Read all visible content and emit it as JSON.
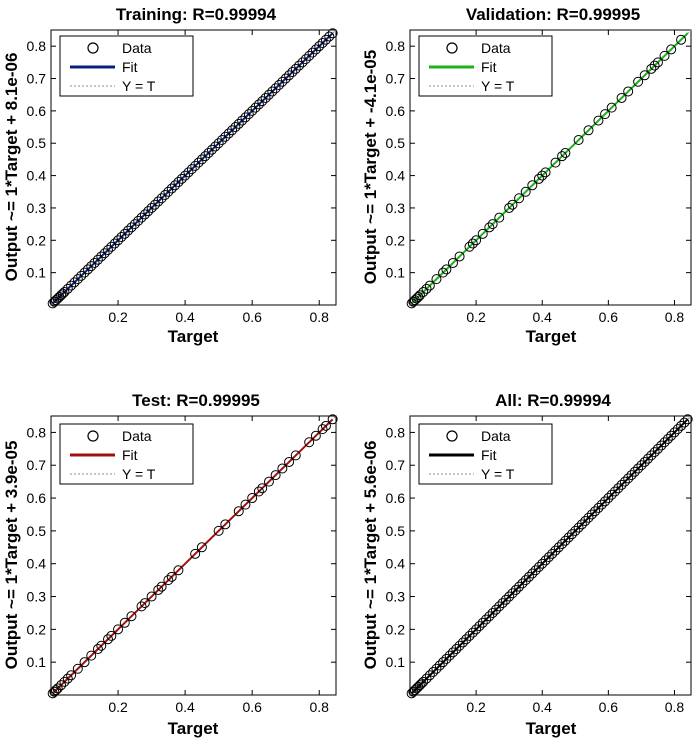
{
  "chart_data": [
    {
      "type": "scatter",
      "title": "Training: R=0.99994",
      "xlabel": "Target",
      "ylabel": "Output ~= 1*Target + 8.1e-06",
      "fit_color": "#0a1f7a",
      "xlim": [
        0,
        0.85
      ],
      "ylim": [
        0,
        0.85
      ],
      "xticks": [
        "0.2",
        "0.4",
        "0.6",
        "0.8"
      ],
      "yticks": [
        "0.1",
        "0.2",
        "0.3",
        "0.4",
        "0.5",
        "0.6",
        "0.7",
        "0.8"
      ],
      "legend": {
        "position": "top-left",
        "entries": [
          "Data",
          "Fit",
          "Y = T"
        ]
      },
      "fit_line": [
        [
          0.005,
          0.005
        ],
        [
          0.84,
          0.84
        ]
      ],
      "points": [
        [
          0.005,
          0.005
        ],
        [
          0.01,
          0.01
        ],
        [
          0.015,
          0.015
        ],
        [
          0.02,
          0.02
        ],
        [
          0.025,
          0.025
        ],
        [
          0.03,
          0.03
        ],
        [
          0.035,
          0.035
        ],
        [
          0.04,
          0.04
        ],
        [
          0.05,
          0.05
        ],
        [
          0.06,
          0.06
        ],
        [
          0.07,
          0.07
        ],
        [
          0.08,
          0.08
        ],
        [
          0.09,
          0.09
        ],
        [
          0.1,
          0.1
        ],
        [
          0.11,
          0.11
        ],
        [
          0.12,
          0.12
        ],
        [
          0.13,
          0.13
        ],
        [
          0.14,
          0.14
        ],
        [
          0.15,
          0.15
        ],
        [
          0.16,
          0.16
        ],
        [
          0.17,
          0.17
        ],
        [
          0.18,
          0.18
        ],
        [
          0.19,
          0.19
        ],
        [
          0.2,
          0.2
        ],
        [
          0.21,
          0.21
        ],
        [
          0.22,
          0.22
        ],
        [
          0.23,
          0.23
        ],
        [
          0.24,
          0.24
        ],
        [
          0.25,
          0.25
        ],
        [
          0.26,
          0.26
        ],
        [
          0.27,
          0.27
        ],
        [
          0.28,
          0.28
        ],
        [
          0.29,
          0.29
        ],
        [
          0.3,
          0.3
        ],
        [
          0.31,
          0.31
        ],
        [
          0.32,
          0.32
        ],
        [
          0.33,
          0.33
        ],
        [
          0.34,
          0.34
        ],
        [
          0.35,
          0.35
        ],
        [
          0.36,
          0.36
        ],
        [
          0.37,
          0.37
        ],
        [
          0.38,
          0.38
        ],
        [
          0.39,
          0.39
        ],
        [
          0.4,
          0.4
        ],
        [
          0.41,
          0.41
        ],
        [
          0.42,
          0.42
        ],
        [
          0.43,
          0.43
        ],
        [
          0.44,
          0.44
        ],
        [
          0.45,
          0.45
        ],
        [
          0.46,
          0.46
        ],
        [
          0.47,
          0.47
        ],
        [
          0.48,
          0.48
        ],
        [
          0.49,
          0.49
        ],
        [
          0.5,
          0.5
        ],
        [
          0.51,
          0.51
        ],
        [
          0.52,
          0.52
        ],
        [
          0.53,
          0.53
        ],
        [
          0.54,
          0.54
        ],
        [
          0.55,
          0.55
        ],
        [
          0.56,
          0.56
        ],
        [
          0.57,
          0.57
        ],
        [
          0.58,
          0.58
        ],
        [
          0.59,
          0.59
        ],
        [
          0.6,
          0.6
        ],
        [
          0.61,
          0.61
        ],
        [
          0.62,
          0.62
        ],
        [
          0.63,
          0.63
        ],
        [
          0.64,
          0.64
        ],
        [
          0.65,
          0.65
        ],
        [
          0.66,
          0.66
        ],
        [
          0.67,
          0.67
        ],
        [
          0.68,
          0.68
        ],
        [
          0.69,
          0.69
        ],
        [
          0.7,
          0.7
        ],
        [
          0.71,
          0.71
        ],
        [
          0.72,
          0.72
        ],
        [
          0.73,
          0.73
        ],
        [
          0.74,
          0.74
        ],
        [
          0.75,
          0.75
        ],
        [
          0.76,
          0.76
        ],
        [
          0.77,
          0.77
        ],
        [
          0.78,
          0.78
        ],
        [
          0.79,
          0.79
        ],
        [
          0.8,
          0.8
        ],
        [
          0.81,
          0.81
        ],
        [
          0.82,
          0.82
        ],
        [
          0.83,
          0.83
        ],
        [
          0.84,
          0.84
        ]
      ]
    },
    {
      "type": "scatter",
      "title": "Validation: R=0.99995",
      "xlabel": "Target",
      "ylabel": "Output ~= 1*Target + -4.1e-05",
      "fit_color": "#1db11d",
      "xlim": [
        0,
        0.85
      ],
      "ylim": [
        0,
        0.85
      ],
      "xticks": [
        "0.2",
        "0.4",
        "0.6",
        "0.8"
      ],
      "yticks": [
        "0.1",
        "0.2",
        "0.3",
        "0.4",
        "0.5",
        "0.6",
        "0.7",
        "0.8"
      ],
      "legend": {
        "position": "top-left",
        "entries": [
          "Data",
          "Fit",
          "Y = T"
        ]
      },
      "fit_line": [
        [
          0.005,
          0.005
        ],
        [
          0.84,
          0.84
        ]
      ],
      "points": [
        [
          0.005,
          0.005
        ],
        [
          0.01,
          0.01
        ],
        [
          0.015,
          0.015
        ],
        [
          0.02,
          0.02
        ],
        [
          0.025,
          0.025
        ],
        [
          0.03,
          0.03
        ],
        [
          0.04,
          0.04
        ],
        [
          0.05,
          0.05
        ],
        [
          0.06,
          0.06
        ],
        [
          0.08,
          0.08
        ],
        [
          0.1,
          0.1
        ],
        [
          0.11,
          0.11
        ],
        [
          0.13,
          0.13
        ],
        [
          0.15,
          0.15
        ],
        [
          0.18,
          0.18
        ],
        [
          0.19,
          0.19
        ],
        [
          0.2,
          0.2
        ],
        [
          0.22,
          0.22
        ],
        [
          0.24,
          0.24
        ],
        [
          0.25,
          0.25
        ],
        [
          0.27,
          0.27
        ],
        [
          0.3,
          0.3
        ],
        [
          0.31,
          0.31
        ],
        [
          0.33,
          0.33
        ],
        [
          0.35,
          0.35
        ],
        [
          0.37,
          0.37
        ],
        [
          0.39,
          0.39
        ],
        [
          0.4,
          0.4
        ],
        [
          0.41,
          0.41
        ],
        [
          0.44,
          0.44
        ],
        [
          0.46,
          0.46
        ],
        [
          0.47,
          0.47
        ],
        [
          0.51,
          0.51
        ],
        [
          0.54,
          0.54
        ],
        [
          0.57,
          0.57
        ],
        [
          0.59,
          0.59
        ],
        [
          0.61,
          0.61
        ],
        [
          0.64,
          0.64
        ],
        [
          0.66,
          0.66
        ],
        [
          0.69,
          0.69
        ],
        [
          0.71,
          0.71
        ],
        [
          0.73,
          0.73
        ],
        [
          0.74,
          0.74
        ],
        [
          0.75,
          0.75
        ],
        [
          0.77,
          0.77
        ],
        [
          0.79,
          0.79
        ],
        [
          0.82,
          0.82
        ]
      ]
    },
    {
      "type": "scatter",
      "title": "Test: R=0.99995",
      "xlabel": "Target",
      "ylabel": "Output ~= 1*Target + 3.9e-05",
      "fit_color": "#a01010",
      "xlim": [
        0,
        0.85
      ],
      "ylim": [
        0,
        0.85
      ],
      "xticks": [
        "0.2",
        "0.4",
        "0.6",
        "0.8"
      ],
      "yticks": [
        "0.1",
        "0.2",
        "0.3",
        "0.4",
        "0.5",
        "0.6",
        "0.7",
        "0.8"
      ],
      "legend": {
        "position": "top-left",
        "entries": [
          "Data",
          "Fit",
          "Y = T"
        ]
      },
      "fit_line": [
        [
          0.005,
          0.005
        ],
        [
          0.84,
          0.84
        ]
      ],
      "points": [
        [
          0.005,
          0.005
        ],
        [
          0.01,
          0.01
        ],
        [
          0.015,
          0.015
        ],
        [
          0.02,
          0.02
        ],
        [
          0.03,
          0.03
        ],
        [
          0.04,
          0.04
        ],
        [
          0.05,
          0.05
        ],
        [
          0.06,
          0.06
        ],
        [
          0.08,
          0.08
        ],
        [
          0.1,
          0.1
        ],
        [
          0.12,
          0.12
        ],
        [
          0.14,
          0.14
        ],
        [
          0.15,
          0.15
        ],
        [
          0.17,
          0.17
        ],
        [
          0.18,
          0.18
        ],
        [
          0.2,
          0.2
        ],
        [
          0.22,
          0.22
        ],
        [
          0.24,
          0.24
        ],
        [
          0.27,
          0.27
        ],
        [
          0.28,
          0.28
        ],
        [
          0.3,
          0.3
        ],
        [
          0.32,
          0.32
        ],
        [
          0.33,
          0.33
        ],
        [
          0.35,
          0.35
        ],
        [
          0.36,
          0.36
        ],
        [
          0.38,
          0.38
        ],
        [
          0.43,
          0.43
        ],
        [
          0.45,
          0.45
        ],
        [
          0.5,
          0.5
        ],
        [
          0.52,
          0.52
        ],
        [
          0.56,
          0.56
        ],
        [
          0.58,
          0.58
        ],
        [
          0.6,
          0.6
        ],
        [
          0.62,
          0.62
        ],
        [
          0.63,
          0.63
        ],
        [
          0.65,
          0.65
        ],
        [
          0.67,
          0.67
        ],
        [
          0.69,
          0.69
        ],
        [
          0.71,
          0.71
        ],
        [
          0.73,
          0.73
        ],
        [
          0.77,
          0.77
        ],
        [
          0.79,
          0.79
        ],
        [
          0.81,
          0.81
        ],
        [
          0.82,
          0.82
        ],
        [
          0.84,
          0.84
        ]
      ]
    },
    {
      "type": "scatter",
      "title": "All: R=0.99994",
      "xlabel": "Target",
      "ylabel": "Output ~= 1*Target + 5.6e-06",
      "fit_color": "#000000",
      "xlim": [
        0,
        0.85
      ],
      "ylim": [
        0,
        0.85
      ],
      "xticks": [
        "0.2",
        "0.4",
        "0.6",
        "0.8"
      ],
      "yticks": [
        "0.1",
        "0.2",
        "0.3",
        "0.4",
        "0.5",
        "0.6",
        "0.7",
        "0.8"
      ],
      "legend": {
        "position": "top-left",
        "entries": [
          "Data",
          "Fit",
          "Y = T"
        ]
      },
      "fit_line": [
        [
          0.005,
          0.005
        ],
        [
          0.84,
          0.84
        ]
      ],
      "points": [
        [
          0.005,
          0.005
        ],
        [
          0.01,
          0.01
        ],
        [
          0.015,
          0.015
        ],
        [
          0.02,
          0.02
        ],
        [
          0.025,
          0.025
        ],
        [
          0.03,
          0.03
        ],
        [
          0.035,
          0.035
        ],
        [
          0.04,
          0.04
        ],
        [
          0.05,
          0.05
        ],
        [
          0.06,
          0.06
        ],
        [
          0.07,
          0.07
        ],
        [
          0.08,
          0.08
        ],
        [
          0.09,
          0.09
        ],
        [
          0.1,
          0.1
        ],
        [
          0.11,
          0.11
        ],
        [
          0.12,
          0.12
        ],
        [
          0.13,
          0.13
        ],
        [
          0.14,
          0.14
        ],
        [
          0.15,
          0.15
        ],
        [
          0.16,
          0.16
        ],
        [
          0.17,
          0.17
        ],
        [
          0.18,
          0.18
        ],
        [
          0.19,
          0.19
        ],
        [
          0.2,
          0.2
        ],
        [
          0.21,
          0.21
        ],
        [
          0.22,
          0.22
        ],
        [
          0.23,
          0.23
        ],
        [
          0.24,
          0.24
        ],
        [
          0.25,
          0.25
        ],
        [
          0.26,
          0.26
        ],
        [
          0.27,
          0.27
        ],
        [
          0.28,
          0.28
        ],
        [
          0.29,
          0.29
        ],
        [
          0.3,
          0.3
        ],
        [
          0.31,
          0.31
        ],
        [
          0.32,
          0.32
        ],
        [
          0.33,
          0.33
        ],
        [
          0.34,
          0.34
        ],
        [
          0.35,
          0.35
        ],
        [
          0.36,
          0.36
        ],
        [
          0.37,
          0.37
        ],
        [
          0.38,
          0.38
        ],
        [
          0.39,
          0.39
        ],
        [
          0.4,
          0.4
        ],
        [
          0.41,
          0.41
        ],
        [
          0.42,
          0.42
        ],
        [
          0.43,
          0.43
        ],
        [
          0.44,
          0.44
        ],
        [
          0.45,
          0.45
        ],
        [
          0.46,
          0.46
        ],
        [
          0.47,
          0.47
        ],
        [
          0.48,
          0.48
        ],
        [
          0.49,
          0.49
        ],
        [
          0.5,
          0.5
        ],
        [
          0.51,
          0.51
        ],
        [
          0.52,
          0.52
        ],
        [
          0.53,
          0.53
        ],
        [
          0.54,
          0.54
        ],
        [
          0.55,
          0.55
        ],
        [
          0.56,
          0.56
        ],
        [
          0.57,
          0.57
        ],
        [
          0.58,
          0.58
        ],
        [
          0.59,
          0.59
        ],
        [
          0.6,
          0.6
        ],
        [
          0.61,
          0.61
        ],
        [
          0.62,
          0.62
        ],
        [
          0.63,
          0.63
        ],
        [
          0.64,
          0.64
        ],
        [
          0.65,
          0.65
        ],
        [
          0.66,
          0.66
        ],
        [
          0.67,
          0.67
        ],
        [
          0.68,
          0.68
        ],
        [
          0.69,
          0.69
        ],
        [
          0.7,
          0.7
        ],
        [
          0.71,
          0.71
        ],
        [
          0.72,
          0.72
        ],
        [
          0.73,
          0.73
        ],
        [
          0.74,
          0.74
        ],
        [
          0.75,
          0.75
        ],
        [
          0.76,
          0.76
        ],
        [
          0.77,
          0.77
        ],
        [
          0.78,
          0.78
        ],
        [
          0.79,
          0.79
        ],
        [
          0.8,
          0.8
        ],
        [
          0.81,
          0.81
        ],
        [
          0.82,
          0.82
        ],
        [
          0.83,
          0.83
        ],
        [
          0.84,
          0.84
        ]
      ]
    }
  ]
}
